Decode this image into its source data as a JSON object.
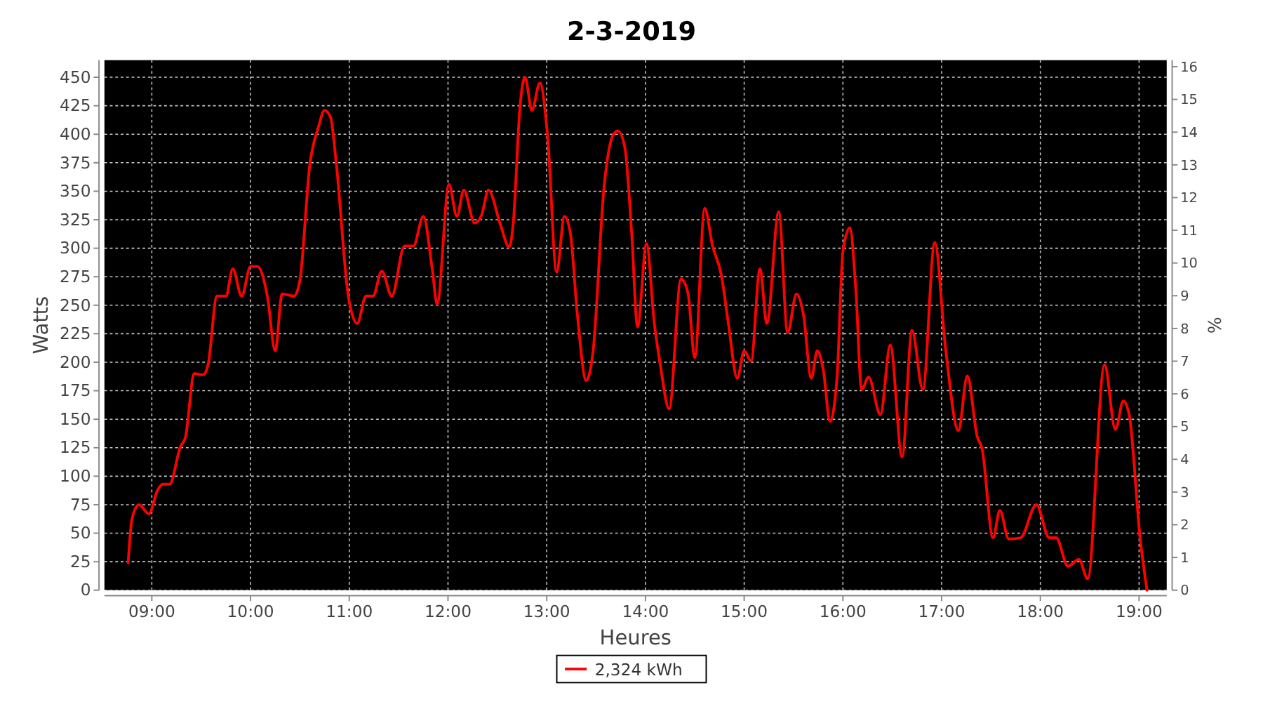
{
  "chart_data": {
    "type": "line",
    "title": "2-3-2019",
    "xlabel": "Heures",
    "ylabel": "Watts",
    "y2label": "%",
    "xlim": [
      8.52,
      19.28
    ],
    "xticks": [
      {
        "value": 9,
        "label": "09:00"
      },
      {
        "value": 10,
        "label": "10:00"
      },
      {
        "value": 11,
        "label": "11:00"
      },
      {
        "value": 12,
        "label": "12:00"
      },
      {
        "value": 13,
        "label": "13:00"
      },
      {
        "value": 14,
        "label": "14:00"
      },
      {
        "value": 15,
        "label": "15:00"
      },
      {
        "value": 16,
        "label": "16:00"
      },
      {
        "value": 17,
        "label": "17:00"
      },
      {
        "value": 18,
        "label": "18:00"
      },
      {
        "value": 19,
        "label": "19:00"
      }
    ],
    "ylim": [
      0,
      465
    ],
    "yticks": [
      0,
      25,
      50,
      75,
      100,
      125,
      150,
      175,
      200,
      225,
      250,
      275,
      300,
      325,
      350,
      375,
      400,
      425,
      450
    ],
    "y2lim": [
      0,
      16.2
    ],
    "y2ticks": [
      0,
      1,
      2,
      3,
      4,
      5,
      6,
      7,
      8,
      9,
      10,
      11,
      12,
      13,
      14,
      15,
      16
    ],
    "grid": true,
    "legend": "bottom",
    "marker": "none",
    "line_style": "solid",
    "series": [
      {
        "name": "2,324 kWh",
        "color": "#ff0000",
        "x": [
          8.76,
          8.8,
          8.87,
          8.97,
          9.06,
          9.11,
          9.18,
          9.29,
          9.34,
          9.43,
          9.52,
          9.57,
          9.66,
          9.75,
          9.82,
          9.91,
          10,
          10.07,
          10.17,
          10.25,
          10.32,
          10.44,
          10.5,
          10.6,
          10.69,
          10.75,
          10.81,
          10.87,
          10.99,
          11.08,
          11.17,
          11.24,
          11.33,
          11.43,
          11.56,
          11.65,
          11.75,
          11.84,
          11.89,
          12.01,
          12.09,
          12.16,
          12.27,
          12.34,
          12.41,
          12.53,
          12.62,
          12.66,
          12.73,
          12.78,
          12.85,
          12.93,
          13.01,
          13.1,
          13.18,
          13.24,
          13.31,
          13.4,
          13.47,
          13.58,
          13.67,
          13.72,
          13.79,
          13.86,
          13.92,
          14.01,
          14.09,
          14.15,
          14.24,
          14.36,
          14.43,
          14.5,
          14.6,
          14.68,
          14.77,
          14.84,
          14.93,
          15,
          15.07,
          15.16,
          15.23,
          15.35,
          15.44,
          15.53,
          15.6,
          15.68,
          15.74,
          15.8,
          15.87,
          15.94,
          16,
          16.07,
          16.13,
          16.19,
          16.26,
          16.38,
          16.48,
          16.6,
          16.7,
          16.81,
          16.93,
          17.04,
          17.17,
          17.26,
          17.36,
          17.41,
          17.52,
          17.59,
          17.68,
          17.8,
          17.96,
          18.09,
          18.16,
          18.28,
          18.39,
          18.48,
          18.65,
          18.76,
          18.84,
          18.9,
          19.01,
          19.08
        ],
        "values": [
          24,
          63,
          75,
          67,
          88,
          93,
          93,
          126,
          134,
          190,
          189,
          198,
          258,
          258,
          282,
          258,
          284,
          284,
          258,
          210,
          260,
          258,
          272,
          373,
          407,
          421,
          415,
          373,
          258,
          234,
          258,
          258,
          280,
          258,
          302,
          302,
          328,
          282,
          251,
          356,
          328,
          351,
          322,
          329,
          351,
          321,
          301,
          321,
          425,
          450,
          421,
          445,
          397,
          279,
          328,
          313,
          242,
          184,
          210,
          353,
          399,
          403,
          389,
          314,
          231,
          304,
          234,
          198,
          159,
          273,
          261,
          204,
          335,
          302,
          276,
          234,
          186,
          210,
          201,
          282,
          234,
          332,
          226,
          260,
          242,
          186,
          210,
          194,
          148,
          186,
          297,
          318,
          265,
          176,
          187,
          154,
          215,
          117,
          228,
          176,
          305,
          212,
          140,
          188,
          135,
          124,
          46,
          70,
          45,
          46,
          75,
          46,
          46,
          21,
          27,
          10,
          198,
          141,
          166,
          154,
          46,
          0
        ]
      }
    ]
  }
}
